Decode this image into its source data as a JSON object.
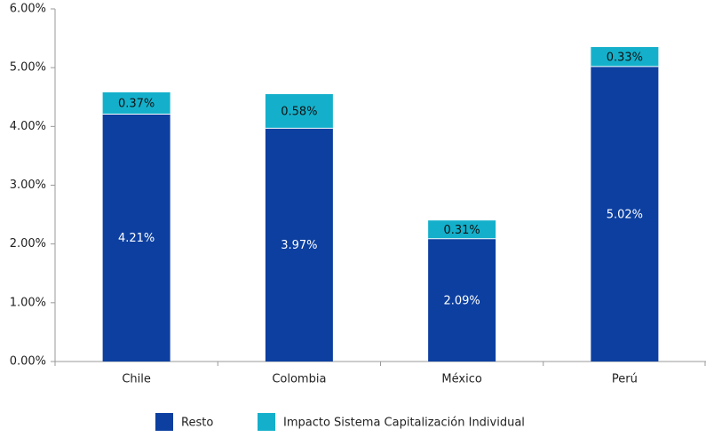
{
  "chart_data": {
    "type": "stacked_bar",
    "categories": [
      "Chile",
      "Colombia",
      "México",
      "Perú"
    ],
    "series": [
      {
        "name": "Resto",
        "color": "#0c3fa0",
        "values": [
          4.21,
          3.97,
          2.09,
          5.02
        ],
        "value_labels": [
          "4.21%",
          "3.97%",
          "2.09%",
          "5.02%"
        ]
      },
      {
        "name": "Impacto Sistema Capitalización Individual",
        "color": "#14b0cb",
        "values": [
          0.37,
          0.58,
          0.31,
          0.33
        ],
        "value_labels": [
          "0.37%",
          "0.58%",
          "0.31%",
          "0.33%"
        ]
      }
    ],
    "ylim": [
      0,
      6
    ],
    "yticks": [
      {
        "value": 0,
        "label": "0.00%"
      },
      {
        "value": 1,
        "label": "1.00%"
      },
      {
        "value": 2,
        "label": "2.00%"
      },
      {
        "value": 3,
        "label": "3.00%"
      },
      {
        "value": 4,
        "label": "4.00%"
      },
      {
        "value": 5,
        "label": "5.00%"
      },
      {
        "value": 6,
        "label": "6.00%"
      }
    ],
    "legend": "bottom"
  }
}
